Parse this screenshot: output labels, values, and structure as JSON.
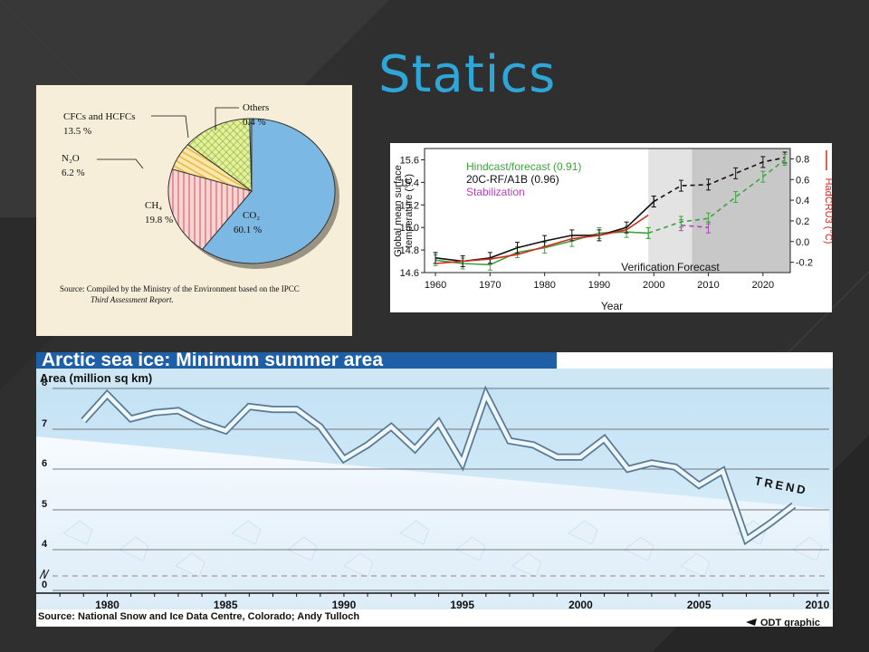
{
  "slide": {
    "title": "Statics"
  },
  "colors": {
    "title": "#2ea6d8",
    "background": "#2f2f2f"
  },
  "pie": {
    "source_line1": "Source: Compiled by the Ministry of the Environment based on the IPCC",
    "source_line2": "Third Assessment Report."
  },
  "temperature": {
    "ylabel_line1": "Global mean surface",
    "ylabel_line2": "temperature (°C)",
    "xlabel": "Year",
    "right_label": "HadCRU3 (°C)",
    "verification_label": "Verification",
    "forecast_label": "Forecast"
  },
  "ice": {
    "title": "Arctic sea ice: Minimum summer area",
    "ylabel": "Area (million sq km)",
    "trend_label": "TREND",
    "source": "Source: National Snow and Ice Data Centre, Colorado; Andy Tulloch",
    "credit": "ODT graphic"
  },
  "chart_data": [
    {
      "type": "pie",
      "slices": [
        {
          "label": "CO₂",
          "value": 60.1,
          "display": "60.1 %",
          "color": "#7cb8e4"
        },
        {
          "label": "CH₄",
          "value": 19.8,
          "display": "19.8 %",
          "color": "#f4c0c0"
        },
        {
          "label": "N₂O",
          "value": 6.2,
          "display": "6.2 %",
          "color": "#f3d98a"
        },
        {
          "label": "CFCs and HCFCs",
          "value": 13.5,
          "display": "13.5 %",
          "color": "#d9ea9c"
        },
        {
          "label": "Others",
          "value": 0.4,
          "display": "0.4 %",
          "color": "#7cb8e4"
        }
      ]
    },
    {
      "type": "line",
      "xlim": [
        1958,
        2025
      ],
      "ylim": [
        14.6,
        15.7
      ],
      "xticks": [
        1960,
        1970,
        1980,
        1990,
        2000,
        2010,
        2020
      ],
      "yticks": [
        "14.6",
        "14.8",
        "15.0",
        "15.2",
        "15.4",
        "15.6"
      ],
      "yticks_right": [
        "-0.2",
        "0.0",
        "0.2",
        "0.4",
        "0.6",
        "0.8"
      ],
      "yticks_right_values": [
        -0.2,
        0.0,
        0.2,
        0.4,
        0.6,
        0.8
      ],
      "right_ylim": [
        -0.3,
        0.9
      ],
      "verification_range": [
        1999,
        2007
      ],
      "forecast_range": [
        2007,
        2025
      ],
      "series": [
        {
          "name": "Hindcast/forecast (0.91)",
          "color": "#3ea33e",
          "style": "solid",
          "x": [
            1960,
            1965,
            1970,
            1975,
            1980,
            1985,
            1990,
            1995,
            1999
          ],
          "y": [
            14.71,
            14.68,
            14.67,
            14.78,
            14.82,
            14.88,
            14.95,
            14.96,
            14.95
          ]
        },
        {
          "name": "20C-RF/A1B (0.96)",
          "color": "#111111",
          "style": "solid",
          "x": [
            1960,
            1965,
            1970,
            1975,
            1980,
            1985,
            1990,
            1995,
            2000
          ],
          "y": [
            14.73,
            14.7,
            14.73,
            14.82,
            14.88,
            14.93,
            14.93,
            15.0,
            15.23
          ]
        },
        {
          "name": "Stabilization",
          "color": "#b040b8",
          "style": "dashed",
          "x": [
            2005,
            2010
          ],
          "y": [
            15.02,
            15.0
          ]
        },
        {
          "name": "",
          "color": "#d42a1e",
          "style": "solid",
          "x": [
            1960,
            1965,
            1970,
            1975,
            1980,
            1985,
            1990,
            1995,
            1999
          ],
          "y": [
            14.68,
            14.7,
            14.72,
            14.76,
            14.83,
            14.9,
            14.93,
            14.98,
            15.11
          ]
        },
        {
          "name": "",
          "color": "#111111",
          "style": "dashed",
          "x": [
            2000,
            2005,
            2010,
            2015,
            2020,
            2024
          ],
          "y": [
            15.23,
            15.37,
            15.38,
            15.48,
            15.58,
            15.62
          ]
        },
        {
          "name": "",
          "color": "#3ea33e",
          "style": "dashed",
          "x": [
            1999,
            2005,
            2010,
            2015,
            2020,
            2024
          ],
          "y": [
            14.95,
            15.05,
            15.08,
            15.27,
            15.45,
            15.6
          ]
        }
      ]
    },
    {
      "type": "line",
      "xlim": [
        1977,
        2010.5
      ],
      "ylim": [
        0,
        8
      ],
      "xticks": [
        1980,
        1985,
        1990,
        1995,
        2000,
        2005,
        2010
      ],
      "yticks": [
        0,
        4,
        5,
        6,
        7,
        8
      ],
      "axis_break": true,
      "series": [
        {
          "name": "Minimum summer area",
          "x": [
            1979,
            1980,
            1981,
            1982,
            1983,
            1984,
            1985,
            1986,
            1987,
            1988,
            1989,
            1990,
            1991,
            1992,
            1993,
            1994,
            1995,
            1996,
            1997,
            1998,
            1999,
            2000,
            2001,
            2002,
            2003,
            2004,
            2005,
            2006,
            2007,
            2008,
            2009
          ],
          "y": [
            7.2,
            7.85,
            7.25,
            7.4,
            7.45,
            7.15,
            6.95,
            7.55,
            7.48,
            7.48,
            7.05,
            6.25,
            6.6,
            7.05,
            6.5,
            7.15,
            6.15,
            7.85,
            6.7,
            6.6,
            6.3,
            6.3,
            6.75,
            6.0,
            6.15,
            6.05,
            5.6,
            5.95,
            4.25,
            4.65,
            5.1
          ]
        }
      ],
      "trend": {
        "x": [
          1977,
          2010.5
        ],
        "y": [
          6.9,
          5.1
        ]
      }
    }
  ]
}
